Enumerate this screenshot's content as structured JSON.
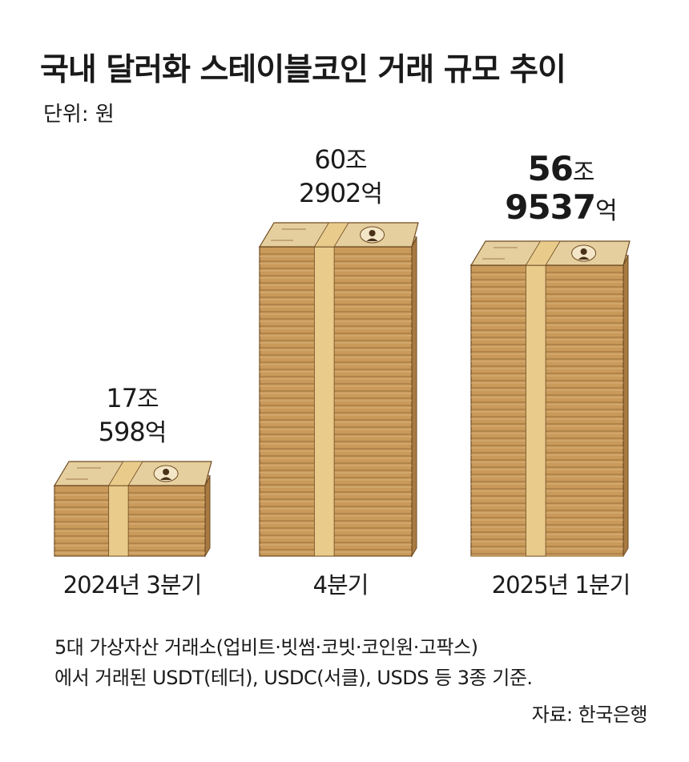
{
  "title": "국내 달러화 스테이블코인 거래 규모 추이",
  "unit_label": "단위: 원",
  "chart_data": {
    "type": "bar",
    "title": "국내 달러화 스테이블코인 거래 규모 추이",
    "unit": "원",
    "categories": [
      "2024년 3분기",
      "4분기",
      "2025년 1분기"
    ],
    "values": [
      170598,
      602902,
      569537
    ],
    "value_unit": "억 원",
    "data_labels": [
      {
        "jo": "17",
        "jo_unit": "조",
        "eok": "598",
        "eok_unit": "억"
      },
      {
        "jo": "60",
        "jo_unit": "조",
        "eok": "2902",
        "eok_unit": "억"
      },
      {
        "jo": "56",
        "jo_unit": "조",
        "eok": "9537",
        "eok_unit": "억"
      }
    ],
    "highlight_index": 2,
    "xlabel": "",
    "ylabel": "",
    "ylim": [
      0,
      602902
    ],
    "grid": false,
    "legend": "none"
  },
  "notes": {
    "line1": "5대 가상자산 거래소(업비트·빗썸·코빗·코인원·고팍스)",
    "line2": "에서 거래된 USDT(테더), USDC(서클), USDS 등 3종 기준."
  },
  "source": "자료: 한국은행",
  "colors": {
    "bill_edge": "#c99a5a",
    "bill_edge_light": "#d9b07a",
    "bill_line": "#8a6232",
    "band": "#e9cc8c",
    "bill_top": "#e6cf9e",
    "bill_outline": "#6e4a22",
    "text": "#1a1a1a"
  }
}
